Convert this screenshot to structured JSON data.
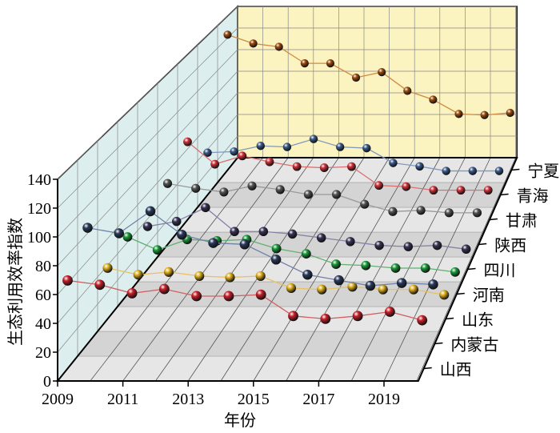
{
  "chart_data": {
    "type": "line",
    "subtype": "3d-ribbon",
    "xlabel": "年份",
    "ylabel": "生态利用效率指数",
    "ylim": [
      0,
      140
    ],
    "yticks": [
      0,
      20,
      40,
      60,
      80,
      100,
      120,
      140
    ],
    "xticks": [
      2009,
      2011,
      2013,
      2015,
      2017,
      2019
    ],
    "x": [
      2009,
      2010,
      2011,
      2012,
      2013,
      2014,
      2015,
      2016,
      2017,
      2018,
      2019,
      2020
    ],
    "grid": true,
    "series": [
      {
        "name": "山西",
        "color": "#c8202a",
        "line": "#d06060",
        "values": [
          62,
          59,
          53,
          56,
          51,
          51,
          52,
          37,
          35,
          37,
          40,
          34
        ]
      },
      {
        "name": "内蒙古",
        "color": "#2a3a5c",
        "line": "#7080a8",
        "values": [
          84,
          80,
          96,
          79,
          73,
          72,
          61,
          50,
          46,
          42,
          44,
          43
        ]
      },
      {
        "name": "山东",
        "color": "#e0b020",
        "line": "#e8c060",
        "values": [
          38,
          33,
          35,
          32,
          31,
          32,
          23,
          22,
          24,
          22,
          22,
          18
        ]
      },
      {
        "name": "河南",
        "color": "#1a9a3a",
        "line": "#60b070",
        "values": [
          44,
          34,
          42,
          41,
          42,
          35,
          31,
          23,
          22,
          20,
          20,
          17
        ]
      },
      {
        "name": "四川",
        "color": "#3a3356",
        "line": "#8880a8",
        "values": [
          34,
          38,
          49,
          30,
          30,
          28,
          25,
          22,
          19,
          18,
          19,
          16
        ]
      },
      {
        "name": "陕西",
        "color": "#555555",
        "line": "#999999",
        "values": [
          50,
          46,
          43,
          48,
          45,
          41,
          41,
          33,
          27,
          28,
          26,
          26
        ]
      },
      {
        "name": "甘肃",
        "color": "#d03038",
        "line": "#d87070",
        "values": [
          66,
          47,
          54,
          49,
          45,
          44,
          45,
          29,
          28,
          25,
          25,
          25
        ]
      },
      {
        "name": "青海",
        "color": "#3a5a8a",
        "line": "#8098c0",
        "values": [
          37,
          38,
          43,
          42,
          49,
          42,
          41,
          28,
          25,
          21,
          21,
          21
        ]
      },
      {
        "name": "宁夏",
        "color": "#9a4a10",
        "line": "#d08a40",
        "values": [
          123,
          115,
          112,
          97,
          97,
          84,
          89,
          72,
          64,
          51,
          50,
          52
        ]
      }
    ]
  }
}
